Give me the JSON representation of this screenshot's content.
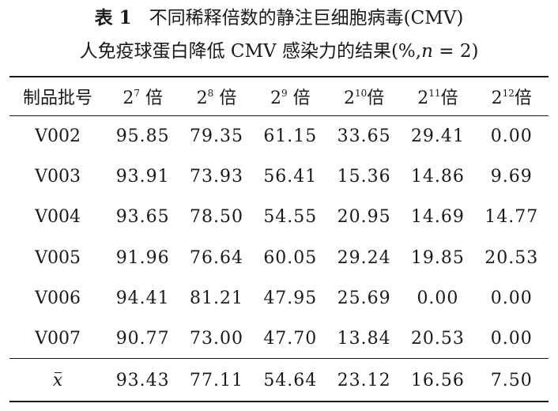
{
  "caption": {
    "table_number": "表 1",
    "title_line1": "不同稀释倍数的静注巨细胞病毒(CMV)",
    "title_line2_pre": "人免疫球蛋白降低 CMV 感染力的结果(%,",
    "title_line2_n": "n",
    "title_line2_post": " = 2)"
  },
  "table": {
    "header_first": "制品批号",
    "header_base": "2",
    "header_suffix": "倍",
    "header_exponents": [
      "7",
      "8",
      "9",
      "10",
      "11",
      "12"
    ],
    "rows": [
      {
        "label": "V002",
        "values": [
          "95.85",
          "79.35",
          "61.15",
          "33.65",
          "29.41",
          "0.00"
        ]
      },
      {
        "label": "V003",
        "values": [
          "93.91",
          "73.93",
          "56.41",
          "15.36",
          "14.86",
          "9.69"
        ]
      },
      {
        "label": "V004",
        "values": [
          "93.65",
          "78.50",
          "54.55",
          "20.95",
          "14.69",
          "14.77"
        ]
      },
      {
        "label": "V005",
        "values": [
          "91.96",
          "76.64",
          "60.05",
          "29.24",
          "19.85",
          "20.53"
        ]
      },
      {
        "label": "V006",
        "values": [
          "94.41",
          "81.21",
          "47.95",
          "25.69",
          "0.00",
          "0.00"
        ]
      },
      {
        "label": "V007",
        "values": [
          "90.77",
          "73.00",
          "47.70",
          "13.84",
          "20.53",
          "0.00"
        ]
      }
    ],
    "summary": {
      "label": "x",
      "values": [
        "93.43",
        "77.11",
        "54.64",
        "23.12",
        "16.56",
        "7.50"
      ]
    }
  }
}
